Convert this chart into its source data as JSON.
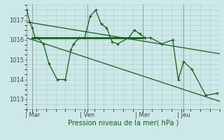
{
  "background_color": "#cce8e8",
  "grid_color": "#aacccc",
  "line_color": "#1a5c1a",
  "ylabel_ticks": [
    1013,
    1014,
    1015,
    1016,
    1017
  ],
  "xlabel": "Pression niveau de la mer( hPa )",
  "xtick_labels": [
    "| Mar",
    "| Ven",
    "| Mer",
    "| Jeu"
  ],
  "xtick_positions": [
    8,
    88,
    168,
    228
  ],
  "xlim": [
    0,
    280
  ],
  "ylim": [
    1012.5,
    1017.8
  ],
  "series1_x": [
    0,
    4,
    8,
    12,
    16,
    24,
    32,
    44,
    56,
    64,
    68,
    76,
    84,
    92,
    100,
    108,
    116,
    124,
    132,
    148,
    156,
    164,
    172,
    180,
    196,
    212,
    220,
    228,
    240,
    260,
    276
  ],
  "series1_y": [
    1017.5,
    1016.9,
    1016.6,
    1016.1,
    1016.1,
    1015.8,
    1014.8,
    1014.0,
    1014.0,
    1015.5,
    1015.8,
    1016.1,
    1016.1,
    1017.2,
    1017.5,
    1016.8,
    1016.6,
    1015.9,
    1015.8,
    1016.1,
    1016.5,
    1016.3,
    1016.1,
    1016.1,
    1015.8,
    1016.0,
    1014.0,
    1014.9,
    1014.5,
    1013.2,
    1013.3
  ],
  "trend1_x": [
    0,
    280
  ],
  "trend1_y": [
    1016.9,
    1015.3
  ],
  "trend2_x": [
    0,
    280
  ],
  "trend2_y": [
    1016.1,
    1012.9
  ],
  "flat_line_x": [
    8,
    168
  ],
  "flat_line_y": [
    1016.1,
    1016.1
  ],
  "vline_positions": [
    8,
    88,
    168,
    228
  ]
}
